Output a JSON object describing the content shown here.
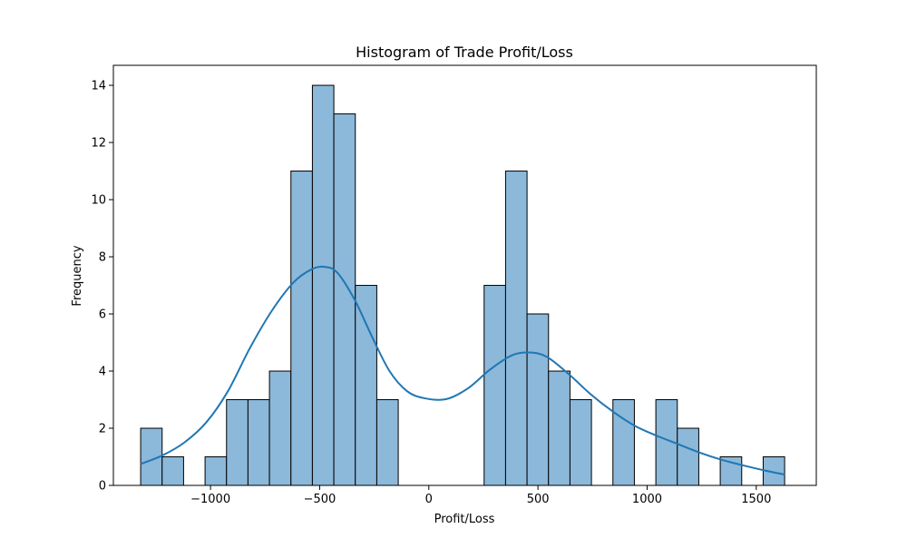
{
  "chart_data": {
    "type": "bar",
    "title": "Histogram of Trade Profit/Loss",
    "xlabel": "Profit/Loss",
    "ylabel": "Frequency",
    "xlim": [
      -1445,
      1775
    ],
    "ylim": [
      0,
      14.7
    ],
    "x_ticks": [
      -1000,
      -500,
      0,
      500,
      1000,
      1500
    ],
    "x_tick_labels": [
      "−1000",
      "−500",
      "0",
      "500",
      "1000",
      "1500"
    ],
    "y_ticks": [
      0,
      2,
      4,
      6,
      8,
      10,
      12,
      14
    ],
    "y_tick_labels": [
      "0",
      "2",
      "4",
      "6",
      "8",
      "10",
      "12",
      "14"
    ],
    "bin_edges": [
      -1320,
      -1221.67,
      -1123.33,
      -1025,
      -926.67,
      -828.33,
      -730,
      -631.67,
      -533.33,
      -435,
      -336.67,
      -238.33,
      -140,
      -41.67,
      56.67,
      155,
      253.33,
      351.67,
      450,
      548.33,
      646.67,
      745,
      843.33,
      941.67,
      1040,
      1138.33,
      1236.67,
      1335,
      1433.33,
      1531.67,
      1630
    ],
    "values": [
      2,
      1,
      0,
      1,
      3,
      3,
      4,
      11,
      14,
      13,
      7,
      3,
      0,
      0,
      0,
      0,
      7,
      11,
      6,
      4,
      3,
      0,
      3,
      0,
      3,
      2,
      0,
      1,
      0,
      1
    ],
    "kde": {
      "x": [
        -1320,
        -1220,
        -1120,
        -1020,
        -920,
        -820,
        -720,
        -620,
        -540,
        -480,
        -420,
        -340,
        -260,
        -180,
        -100,
        -20,
        80,
        180,
        280,
        380,
        460,
        540,
        640,
        740,
        840,
        940,
        1040,
        1140,
        1240,
        1340,
        1440,
        1540,
        1630
      ],
      "y": [
        0.75,
        1.05,
        1.5,
        2.2,
        3.3,
        4.8,
        6.1,
        7.1,
        7.55,
        7.65,
        7.45,
        6.5,
        5.2,
        4.0,
        3.3,
        3.05,
        3.02,
        3.4,
        4.05,
        4.55,
        4.65,
        4.5,
        3.9,
        3.2,
        2.6,
        2.1,
        1.75,
        1.45,
        1.15,
        0.9,
        0.7,
        0.52,
        0.38
      ]
    },
    "bar_fill": "#8cb8da",
    "bar_edge": "#000000",
    "kde_color": "#1f77b4",
    "grid": false,
    "legend": false
  }
}
